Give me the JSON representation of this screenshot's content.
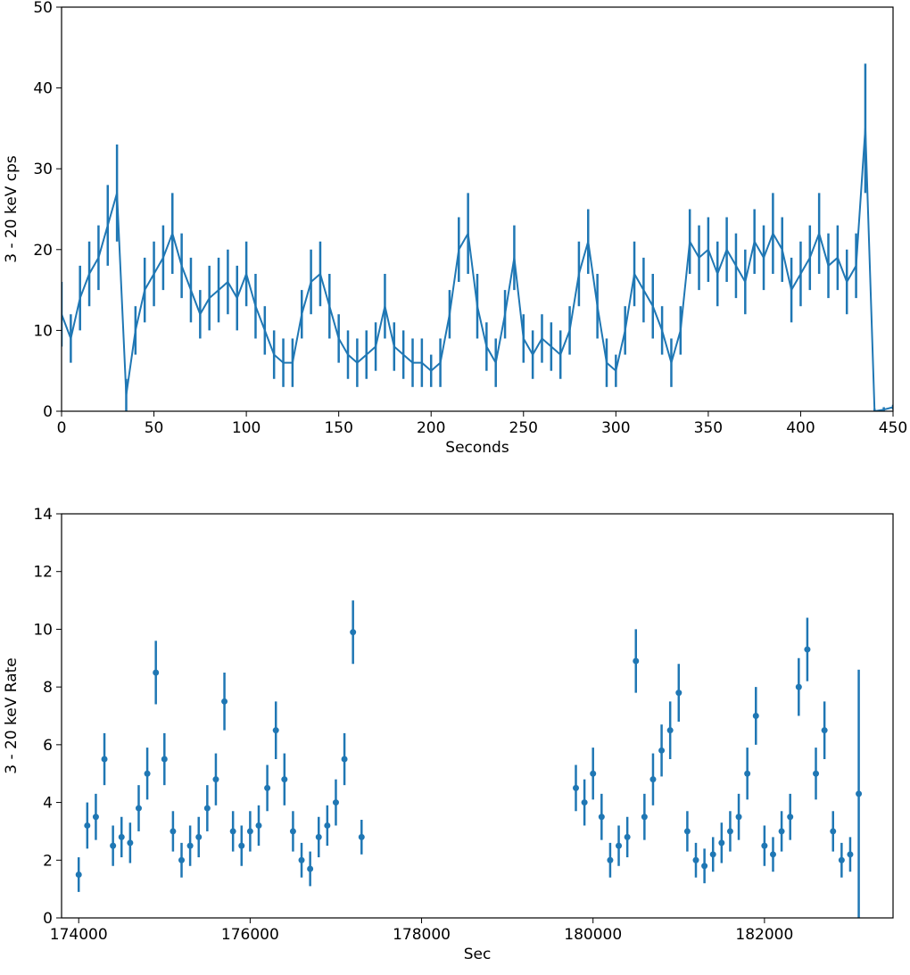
{
  "chart_data": [
    {
      "type": "line",
      "color": "#1f77b4",
      "xlabel": "Seconds",
      "ylabel": "3 - 20 keV cps",
      "xlim": [
        0,
        450
      ],
      "xticks": [
        0,
        50,
        100,
        150,
        200,
        250,
        300,
        350,
        400,
        450
      ],
      "ylim": [
        0,
        50
      ],
      "yticks": [
        0,
        10,
        20,
        30,
        40,
        50
      ],
      "x": [
        0,
        5,
        10,
        15,
        20,
        25,
        30,
        35,
        40,
        45,
        50,
        55,
        60,
        65,
        70,
        75,
        80,
        85,
        90,
        95,
        100,
        105,
        110,
        115,
        120,
        125,
        130,
        135,
        140,
        145,
        150,
        155,
        160,
        165,
        170,
        175,
        180,
        185,
        190,
        195,
        200,
        205,
        210,
        215,
        220,
        225,
        230,
        235,
        240,
        245,
        250,
        255,
        260,
        265,
        270,
        275,
        280,
        285,
        290,
        295,
        300,
        305,
        310,
        315,
        320,
        325,
        330,
        335,
        340,
        345,
        350,
        355,
        360,
        365,
        370,
        375,
        380,
        385,
        390,
        395,
        400,
        405,
        410,
        415,
        420,
        425,
        430,
        435,
        440,
        445,
        450
      ],
      "values": [
        12,
        9,
        14,
        17,
        19,
        23,
        27,
        2,
        10,
        15,
        17,
        19,
        22,
        18,
        15,
        12,
        14,
        15,
        16,
        14,
        17,
        13,
        10,
        7,
        6,
        6,
        12,
        16,
        17,
        13,
        9,
        7,
        6,
        7,
        8,
        13,
        8,
        7,
        6,
        6,
        5,
        6,
        12,
        20,
        22,
        13,
        8,
        6,
        12,
        19,
        9,
        7,
        9,
        8,
        7,
        10,
        17,
        21,
        13,
        6,
        5,
        10,
        17,
        15,
        13,
        10,
        6,
        10,
        21,
        19,
        20,
        17,
        20,
        18,
        16,
        21,
        19,
        22,
        20,
        15,
        17,
        19,
        22,
        18,
        19,
        16,
        18,
        35,
        0,
        0.2,
        0.5
      ],
      "errors": [
        4,
        3,
        4,
        4,
        4,
        5,
        6,
        2,
        3,
        4,
        4,
        4,
        5,
        4,
        4,
        3,
        4,
        4,
        4,
        4,
        4,
        4,
        3,
        3,
        3,
        3,
        3,
        4,
        4,
        4,
        3,
        3,
        3,
        3,
        3,
        4,
        3,
        3,
        3,
        3,
        2,
        3,
        3,
        4,
        5,
        4,
        3,
        3,
        3,
        4,
        3,
        3,
        3,
        3,
        3,
        3,
        4,
        4,
        4,
        3,
        2,
        3,
        4,
        4,
        4,
        3,
        3,
        3,
        4,
        4,
        4,
        4,
        4,
        4,
        4,
        4,
        4,
        5,
        4,
        4,
        4,
        4,
        5,
        4,
        4,
        4,
        4,
        8,
        0.3,
        0.3,
        0.3
      ]
    },
    {
      "type": "scatter",
      "color": "#1f77b4",
      "xlabel": "Sec",
      "ylabel": "3 - 20 keV Rate",
      "xlim": [
        173800,
        183500
      ],
      "xticks": [
        174000,
        176000,
        178000,
        180000,
        182000
      ],
      "ylim": [
        0,
        14
      ],
      "yticks": [
        0,
        2,
        4,
        6,
        8,
        10,
        12,
        14
      ],
      "x": [
        174000,
        174100,
        174200,
        174300,
        174400,
        174500,
        174600,
        174700,
        174800,
        174900,
        175000,
        175100,
        175200,
        175300,
        175400,
        175500,
        175600,
        175700,
        175800,
        175900,
        176000,
        176100,
        176200,
        176300,
        176400,
        176500,
        176600,
        176700,
        176800,
        176900,
        177000,
        177100,
        177200,
        177300,
        179800,
        179900,
        180000,
        180100,
        180200,
        180300,
        180400,
        180500,
        180600,
        180700,
        180800,
        180900,
        181000,
        181100,
        181200,
        181300,
        181400,
        181500,
        181600,
        181700,
        181800,
        181900,
        182000,
        182100,
        182200,
        182300,
        182400,
        182500,
        182600,
        182700,
        182800,
        182900,
        183000,
        183100
      ],
      "values": [
        1.5,
        3.2,
        3.5,
        5.5,
        2.5,
        2.8,
        2.6,
        3.8,
        5.0,
        8.5,
        5.5,
        3.0,
        2.0,
        2.5,
        2.8,
        3.8,
        4.8,
        7.5,
        3.0,
        2.5,
        3.0,
        3.2,
        4.5,
        6.5,
        4.8,
        3.0,
        2.0,
        1.7,
        2.8,
        3.2,
        4.0,
        5.5,
        9.9,
        2.8,
        4.5,
        4.0,
        5.0,
        3.5,
        2.0,
        2.5,
        2.8,
        8.9,
        3.5,
        4.8,
        5.8,
        6.5,
        7.8,
        3.0,
        2.0,
        1.8,
        2.2,
        2.6,
        3.0,
        3.5,
        5.0,
        7.0,
        2.5,
        2.2,
        3.0,
        3.5,
        8.0,
        9.3,
        5.0,
        6.5,
        3.0,
        2.0,
        2.2,
        4.3
      ],
      "errors": [
        0.6,
        0.8,
        0.8,
        0.9,
        0.7,
        0.7,
        0.7,
        0.8,
        0.9,
        1.1,
        0.9,
        0.7,
        0.6,
        0.7,
        0.7,
        0.8,
        0.9,
        1.0,
        0.7,
        0.7,
        0.7,
        0.7,
        0.8,
        1.0,
        0.9,
        0.7,
        0.6,
        0.6,
        0.7,
        0.7,
        0.8,
        0.9,
        1.1,
        0.6,
        0.8,
        0.8,
        0.9,
        0.8,
        0.6,
        0.7,
        0.7,
        1.1,
        0.8,
        0.9,
        0.9,
        1.0,
        1.0,
        0.7,
        0.6,
        0.6,
        0.6,
        0.7,
        0.7,
        0.8,
        0.9,
        1.0,
        0.7,
        0.6,
        0.7,
        0.8,
        1.0,
        1.1,
        0.9,
        1.0,
        0.7,
        0.6,
        0.6,
        4.3
      ]
    }
  ]
}
